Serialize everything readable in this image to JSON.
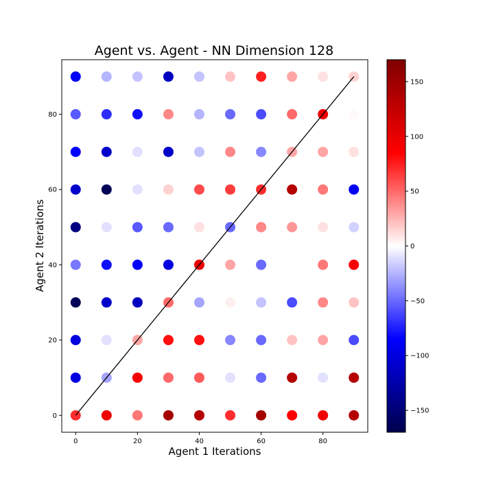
{
  "chart_data": {
    "type": "scatter",
    "title": "Agent vs. Agent - NN Dimension 128",
    "xlabel": "Agent 1 Iterations",
    "ylabel": "Agent 2 Iterations",
    "xlim": [
      -4.5,
      94.5
    ],
    "ylim": [
      -4.5,
      94.5
    ],
    "xticks": [
      0,
      20,
      40,
      60,
      80
    ],
    "yticks": [
      0,
      20,
      40,
      60,
      80
    ],
    "x_values": [
      0,
      10,
      20,
      30,
      40,
      50,
      60,
      70,
      80,
      90
    ],
    "y_values": [
      0,
      10,
      20,
      30,
      40,
      50,
      60,
      70,
      80,
      90
    ],
    "values_by_row": [
      [
        70,
        95,
        45,
        145,
        135,
        70,
        145,
        85,
        95,
        135
      ],
      [
        -100,
        -30,
        90,
        50,
        55,
        -10,
        -50,
        135,
        -10,
        135
      ],
      [
        -100,
        -10,
        30,
        80,
        80,
        -40,
        -50,
        20,
        30,
        -60
      ],
      [
        -165,
        -110,
        -115,
        50,
        -30,
        5,
        -20,
        -60,
        40,
        20
      ],
      [
        -45,
        -80,
        -85,
        -100,
        100,
        30,
        -50,
        0,
        45,
        90
      ],
      [
        -145,
        -10,
        -55,
        -50,
        10,
        -50,
        40,
        35,
        10,
        -15
      ],
      [
        -110,
        -165,
        -10,
        15,
        60,
        65,
        70,
        135,
        45,
        -90
      ],
      [
        -85,
        -110,
        -10,
        -110,
        -20,
        40,
        -40,
        30,
        30,
        10
      ],
      [
        -55,
        -70,
        -80,
        40,
        -25,
        -50,
        -60,
        50,
        95,
        2
      ],
      [
        -90,
        -25,
        -20,
        -115,
        -20,
        20,
        75,
        30,
        10,
        15
      ]
    ],
    "line": {
      "x": [
        0,
        90
      ],
      "y": [
        0,
        90
      ],
      "color": "#000000"
    },
    "colorbar": {
      "cmap": "seismic",
      "vmin": -170,
      "vmax": 170,
      "ticks": [
        -150,
        -100,
        -50,
        0,
        50,
        100,
        150
      ],
      "tick_labels": [
        "−150",
        "−100",
        "−50",
        "0",
        "50",
        "100",
        "150"
      ]
    },
    "grid": false
  }
}
